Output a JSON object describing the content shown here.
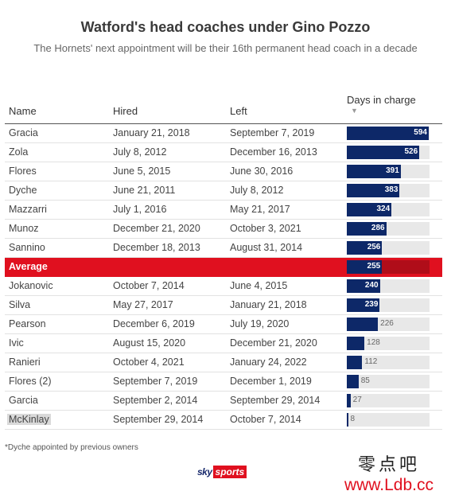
{
  "title": "Watford's head coaches under Gino Pozzo",
  "subtitle": "The Hornets' next appointment will be their 16th permanent head coach in a decade",
  "columns": {
    "name": "Name",
    "hired": "Hired",
    "left": "Left",
    "days": "Days in charge",
    "sort_arrow": "▼"
  },
  "footnote": "*Dyche appointed by previous owners",
  "logo": {
    "sky": "sky",
    "sports": "sports"
  },
  "watermark": {
    "chinese": "零点吧",
    "url": "www.Ldb.cc"
  },
  "colors": {
    "bar": "#0d2868",
    "average": "#e0101f",
    "track": "#e8e8e8"
  },
  "chart_data": {
    "type": "table",
    "title": "Watford's head coaches under Gino Pozzo",
    "subtitle": "The Hornets' next appointment will be their 16th permanent head coach in a decade",
    "max_days": 600,
    "rows": [
      {
        "name": "Gracia",
        "hired": "January 21, 2018",
        "left": "September 7, 2019",
        "days": 594
      },
      {
        "name": "Zola",
        "hired": "July 8, 2012",
        "left": "December 16, 2013",
        "days": 526
      },
      {
        "name": "Flores",
        "hired": "June 5, 2015",
        "left": "June 30, 2016",
        "days": 391
      },
      {
        "name": "Dyche",
        "hired": "June 21, 2011",
        "left": "July 8, 2012",
        "days": 383
      },
      {
        "name": "Mazzarri",
        "hired": "July 1, 2016",
        "left": "May 21, 2017",
        "days": 324
      },
      {
        "name": "Munoz",
        "hired": "December 21, 2020",
        "left": "October 3, 2021",
        "days": 286
      },
      {
        "name": "Sannino",
        "hired": "December 18, 2013",
        "left": "August 31, 2014",
        "days": 256
      },
      {
        "name": "Average",
        "hired": "",
        "left": "",
        "days": 255,
        "average": true
      },
      {
        "name": "Jokanovic",
        "hired": "October 7, 2014",
        "left": "June 4, 2015",
        "days": 240
      },
      {
        "name": "Silva",
        "hired": "May 27, 2017",
        "left": "January 21, 2018",
        "days": 239
      },
      {
        "name": "Pearson",
        "hired": "December 6, 2019",
        "left": "July 19, 2020",
        "days": 226
      },
      {
        "name": "Ivic",
        "hired": "August 15, 2020",
        "left": "December 21, 2020",
        "days": 128
      },
      {
        "name": "Ranieri",
        "hired": "October 4, 2021",
        "left": "January 24, 2022",
        "days": 112
      },
      {
        "name": "Flores (2)",
        "hired": "September 7, 2019",
        "left": "December 1, 2019",
        "days": 85
      },
      {
        "name": "Garcia",
        "hired": "September 2, 2014",
        "left": "September 29, 2014",
        "days": 27
      },
      {
        "name": "McKinlay",
        "hired": "September 29, 2014",
        "left": "October 7, 2014",
        "days": 8,
        "highlight": true
      }
    ]
  }
}
